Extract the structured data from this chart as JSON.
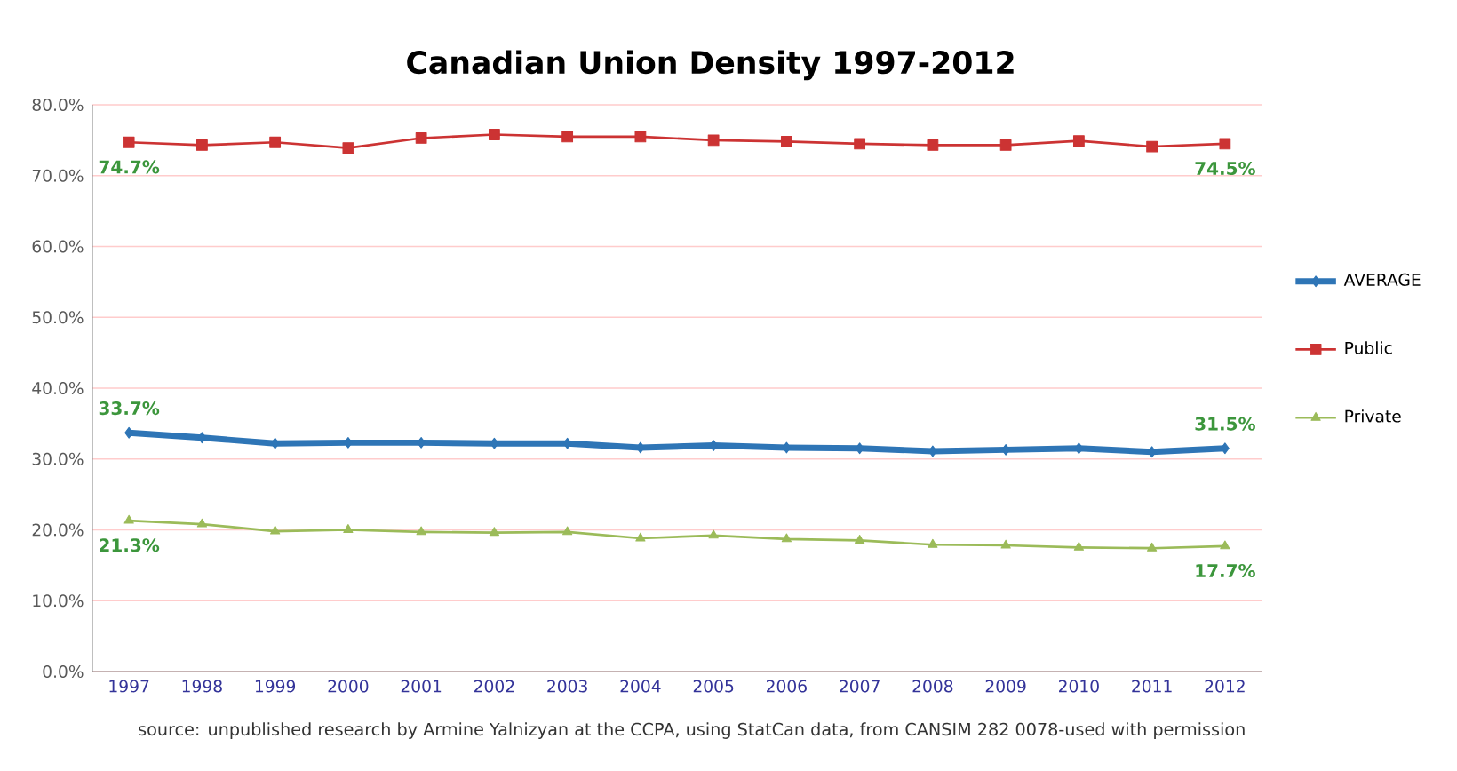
{
  "chart_data": {
    "type": "line",
    "title": "Canadian Union Density 1997-2012",
    "categories": [
      "1997",
      "1998",
      "1999",
      "2000",
      "2001",
      "2002",
      "2003",
      "2004",
      "2005",
      "2006",
      "2007",
      "2008",
      "2009",
      "2010",
      "2011",
      "2012"
    ],
    "series": [
      {
        "name": "AVERAGE",
        "color": "#2e75b6",
        "marker": "diamond",
        "values": [
          33.7,
          33.0,
          32.2,
          32.3,
          32.3,
          32.2,
          32.2,
          31.6,
          31.9,
          31.6,
          31.5,
          31.1,
          31.3,
          31.5,
          31.0,
          31.5
        ],
        "value_labels": [
          "33.7%",
          null,
          null,
          null,
          null,
          null,
          null,
          null,
          null,
          null,
          null,
          null,
          null,
          null,
          null,
          "31.5%"
        ]
      },
      {
        "name": "Public",
        "color": "#cc3333",
        "marker": "square",
        "values": [
          74.7,
          74.3,
          74.7,
          73.9,
          75.3,
          75.8,
          75.5,
          75.5,
          75.0,
          74.8,
          74.5,
          74.3,
          74.3,
          74.9,
          74.1,
          74.5
        ],
        "value_labels": [
          "74.7%",
          null,
          null,
          null,
          null,
          null,
          null,
          null,
          null,
          null,
          null,
          null,
          null,
          null,
          null,
          "74.5%"
        ]
      },
      {
        "name": "Private",
        "color": "#9bbb59",
        "marker": "triangle",
        "values": [
          21.3,
          20.8,
          19.8,
          20.0,
          19.7,
          19.6,
          19.7,
          18.8,
          19.2,
          18.7,
          18.5,
          17.9,
          17.8,
          17.5,
          17.4,
          17.7
        ],
        "value_labels": [
          "21.3%",
          null,
          null,
          null,
          null,
          null,
          null,
          null,
          null,
          null,
          null,
          null,
          null,
          null,
          null,
          "17.7%"
        ]
      }
    ],
    "ylim": [
      0,
      80
    ],
    "yticks": [
      {
        "value": 0,
        "label": "0.0%"
      },
      {
        "value": 10,
        "label": "10.0%"
      },
      {
        "value": 20,
        "label": "20.0%"
      },
      {
        "value": 30,
        "label": "30.0%"
      },
      {
        "value": 40,
        "label": "40.0%"
      },
      {
        "value": 50,
        "label": "50.0%"
      },
      {
        "value": 60,
        "label": "60.0%"
      },
      {
        "value": 70,
        "label": "70.0%"
      },
      {
        "value": 80,
        "label": "80.0%"
      }
    ],
    "grid": "y",
    "legend": "right",
    "line_style": "solid",
    "annotations": [
      "source: unpublished research by Armine Yalnizyan at the CCPA, using StatCan data, from CANSIM 282 0078-used with permission"
    ]
  }
}
